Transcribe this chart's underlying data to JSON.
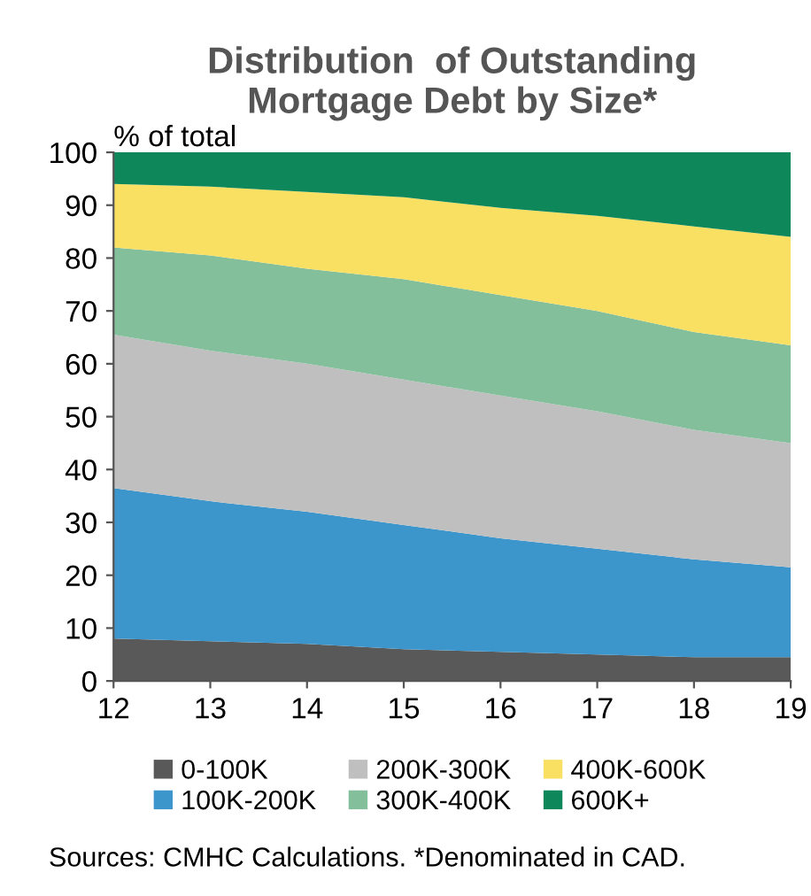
{
  "chart_data": {
    "type": "area",
    "stacked": true,
    "title": "Distribution  of Outstanding\nMortgage Debt by Size*",
    "ylabel": "% of total",
    "x": [
      12,
      13,
      14,
      15,
      16,
      17,
      18,
      19
    ],
    "series": [
      {
        "name": "0-100K",
        "color": "#595959",
        "values": [
          8,
          7.5,
          7,
          6,
          5.5,
          5,
          4.5,
          4.5
        ]
      },
      {
        "name": "100K-200K",
        "color": "#3c96cb",
        "values": [
          28.5,
          26.5,
          25,
          23.5,
          21.5,
          20,
          18.5,
          17
        ]
      },
      {
        "name": "200K-300K",
        "color": "#bfbfbf",
        "values": [
          29,
          28.5,
          28,
          27.5,
          27,
          26,
          24.5,
          23.5
        ]
      },
      {
        "name": "300K-400K",
        "color": "#84bf9c",
        "values": [
          16.5,
          18,
          18,
          19,
          19,
          19,
          18.5,
          18.5
        ]
      },
      {
        "name": "400K-600K",
        "color": "#f9e063",
        "values": [
          12,
          13,
          14.5,
          15.5,
          16.5,
          18,
          20,
          20.5
        ]
      },
      {
        "name": "600K+",
        "color": "#0e875b",
        "values": [
          6,
          6.5,
          7.5,
          8.5,
          10.5,
          12,
          14,
          16
        ]
      }
    ],
    "xlim": [
      12,
      19
    ],
    "xticks": [
      12,
      13,
      14,
      15,
      16,
      17,
      18,
      19
    ],
    "ylim": [
      0,
      100
    ],
    "yticks": [
      0,
      10,
      20,
      30,
      40,
      50,
      60,
      70,
      80,
      90,
      100
    ],
    "legend": "bottom",
    "annotations": [
      "Sources: CMHC Calculations. *Denominated in CAD."
    ]
  }
}
